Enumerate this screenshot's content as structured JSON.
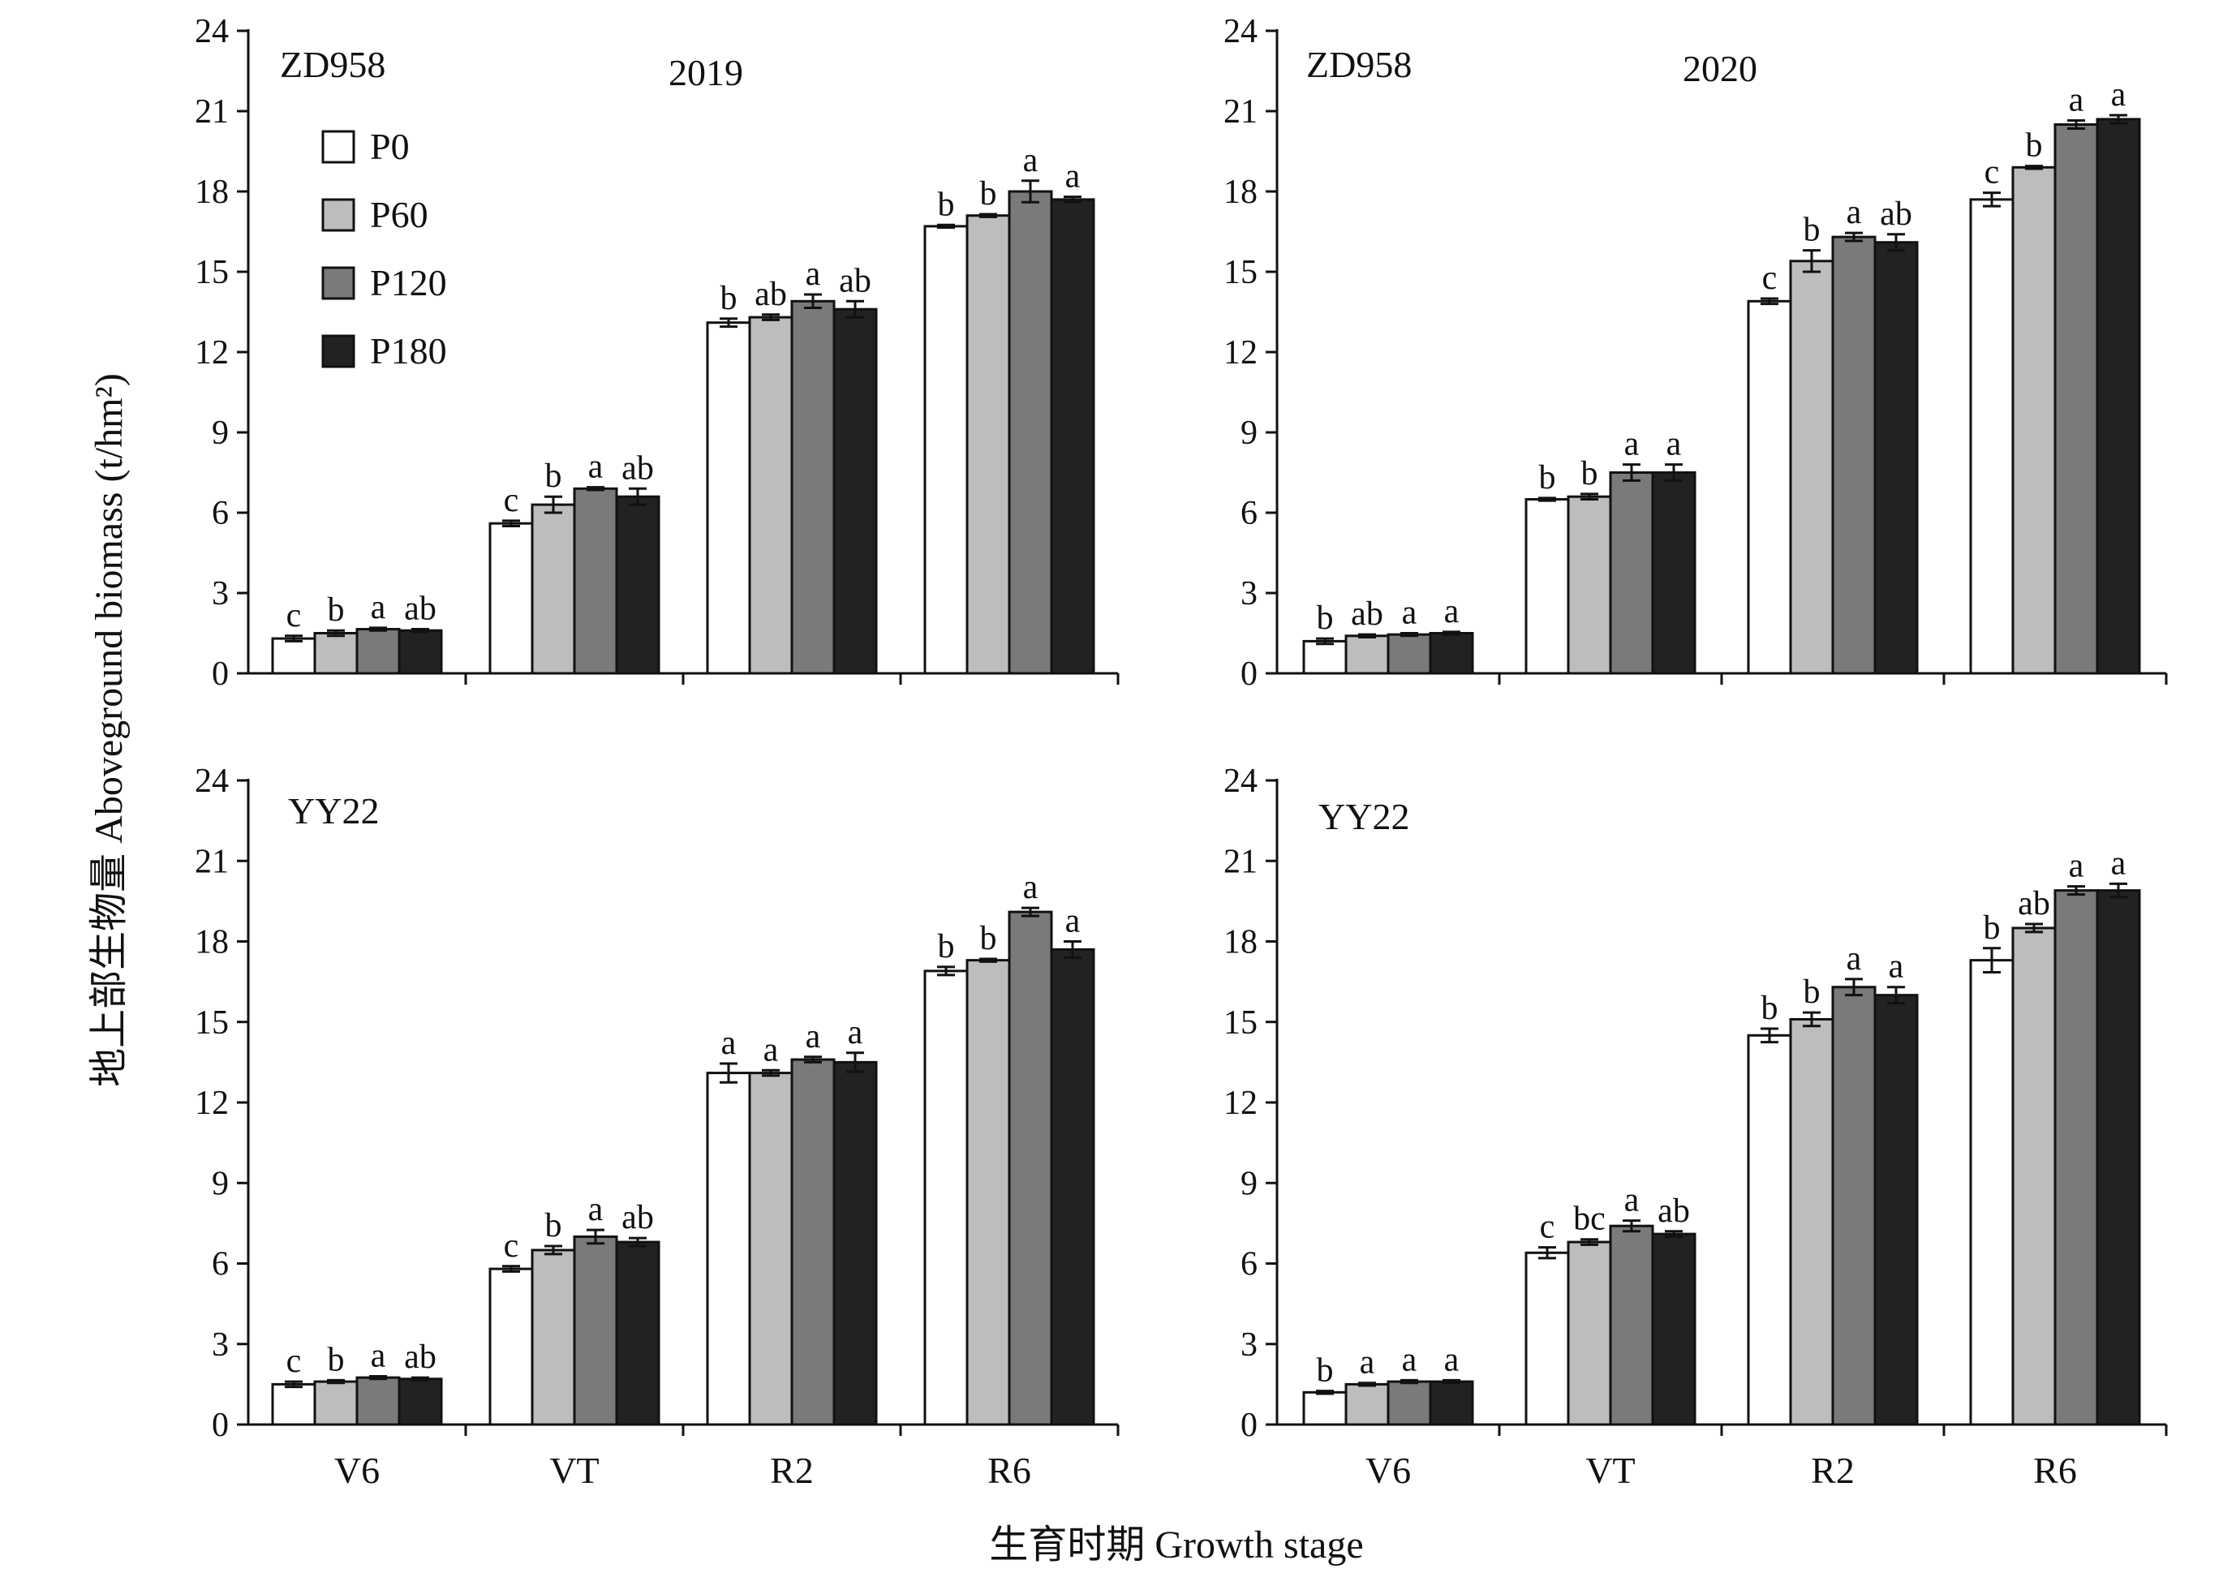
{
  "figure": {
    "ylabel": "地上部生物量 Aboveground biomass (t/hm²)",
    "xlabel": "生育时期 Growth stage",
    "categories": [
      "V6",
      "VT",
      "R2",
      "R6"
    ],
    "series_names": [
      "P0",
      "P60",
      "P120",
      "P180"
    ],
    "series_colors": [
      "#ffffff",
      "#bdbdbd",
      "#7a7a7a",
      "#222222"
    ],
    "yticks": [
      "0",
      "3",
      "6",
      "9",
      "12",
      "15",
      "18",
      "21",
      "24"
    ]
  },
  "chart_data": [
    {
      "type": "bar",
      "cultivar": "ZD958",
      "year": "2019",
      "categories": [
        "V6",
        "VT",
        "R2",
        "R6"
      ],
      "ylim": [
        0,
        24
      ],
      "legend": "top-left",
      "series": [
        {
          "name": "P0",
          "values": [
            1.3,
            5.6,
            13.1,
            16.7
          ],
          "errors": [
            0.1,
            0.1,
            0.15,
            0.05
          ],
          "letters": [
            "c",
            "c",
            "b",
            "b"
          ]
        },
        {
          "name": "P60",
          "values": [
            1.5,
            6.3,
            13.3,
            17.1
          ],
          "errors": [
            0.1,
            0.3,
            0.1,
            0.05
          ],
          "letters": [
            "b",
            "b",
            "ab",
            "b"
          ]
        },
        {
          "name": "P120",
          "values": [
            1.65,
            6.9,
            13.9,
            18.0
          ],
          "errors": [
            0.05,
            0.05,
            0.25,
            0.4
          ],
          "letters": [
            "a",
            "a",
            "a",
            "a"
          ]
        },
        {
          "name": "P180",
          "values": [
            1.6,
            6.6,
            13.6,
            17.7
          ],
          "errors": [
            0.05,
            0.3,
            0.3,
            0.1
          ],
          "letters": [
            "ab",
            "ab",
            "ab",
            "a"
          ]
        }
      ]
    },
    {
      "type": "bar",
      "cultivar": "ZD958",
      "year": "2020",
      "categories": [
        "V6",
        "VT",
        "R2",
        "R6"
      ],
      "ylim": [
        0,
        24
      ],
      "series": [
        {
          "name": "P0",
          "values": [
            1.2,
            6.5,
            13.9,
            17.7
          ],
          "errors": [
            0.1,
            0.05,
            0.1,
            0.25
          ],
          "letters": [
            "b",
            "b",
            "c",
            "c"
          ]
        },
        {
          "name": "P60",
          "values": [
            1.4,
            6.6,
            15.4,
            18.9
          ],
          "errors": [
            0.05,
            0.1,
            0.4,
            0.05
          ],
          "letters": [
            "ab",
            "b",
            "b",
            "b"
          ]
        },
        {
          "name": "P120",
          "values": [
            1.45,
            7.5,
            16.3,
            20.5
          ],
          "errors": [
            0.05,
            0.3,
            0.15,
            0.15
          ],
          "letters": [
            "a",
            "a",
            "a",
            "a"
          ]
        },
        {
          "name": "P180",
          "values": [
            1.5,
            7.5,
            16.1,
            20.7
          ],
          "errors": [
            0.05,
            0.3,
            0.3,
            0.15
          ],
          "letters": [
            "a",
            "a",
            "ab",
            "a"
          ]
        }
      ]
    },
    {
      "type": "bar",
      "cultivar": "YY22",
      "year": "2019",
      "categories": [
        "V6",
        "VT",
        "R2",
        "R6"
      ],
      "ylim": [
        0,
        24
      ],
      "series": [
        {
          "name": "P0",
          "values": [
            1.5,
            5.8,
            13.1,
            16.9
          ],
          "errors": [
            0.1,
            0.1,
            0.35,
            0.15
          ],
          "letters": [
            "c",
            "c",
            "a",
            "b"
          ]
        },
        {
          "name": "P60",
          "values": [
            1.6,
            6.5,
            13.1,
            17.3
          ],
          "errors": [
            0.05,
            0.15,
            0.1,
            0.05
          ],
          "letters": [
            "b",
            "b",
            "a",
            "b"
          ]
        },
        {
          "name": "P120",
          "values": [
            1.75,
            7.0,
            13.6,
            19.1
          ],
          "errors": [
            0.05,
            0.25,
            0.1,
            0.15
          ],
          "letters": [
            "a",
            "a",
            "a",
            "a"
          ]
        },
        {
          "name": "P180",
          "values": [
            1.7,
            6.8,
            13.5,
            17.7
          ],
          "errors": [
            0.05,
            0.15,
            0.35,
            0.3
          ],
          "letters": [
            "ab",
            "ab",
            "a",
            "a"
          ]
        }
      ]
    },
    {
      "type": "bar",
      "cultivar": "YY22",
      "year": "2020",
      "categories": [
        "V6",
        "VT",
        "R2",
        "R6"
      ],
      "ylim": [
        0,
        24
      ],
      "series": [
        {
          "name": "P0",
          "values": [
            1.2,
            6.4,
            14.5,
            17.3
          ],
          "errors": [
            0.05,
            0.2,
            0.25,
            0.45
          ],
          "letters": [
            "b",
            "c",
            "b",
            "b"
          ]
        },
        {
          "name": "P60",
          "values": [
            1.5,
            6.8,
            15.1,
            18.5
          ],
          "errors": [
            0.05,
            0.1,
            0.25,
            0.15
          ],
          "letters": [
            "a",
            "bc",
            "b",
            "ab"
          ]
        },
        {
          "name": "P120",
          "values": [
            1.6,
            7.4,
            16.3,
            19.9
          ],
          "errors": [
            0.05,
            0.2,
            0.3,
            0.15
          ],
          "letters": [
            "a",
            "a",
            "a",
            "a"
          ]
        },
        {
          "name": "P180",
          "values": [
            1.6,
            7.1,
            16.0,
            19.9
          ],
          "errors": [
            0.05,
            0.1,
            0.3,
            0.25
          ],
          "letters": [
            "a",
            "ab",
            "a",
            "a"
          ]
        }
      ]
    }
  ]
}
